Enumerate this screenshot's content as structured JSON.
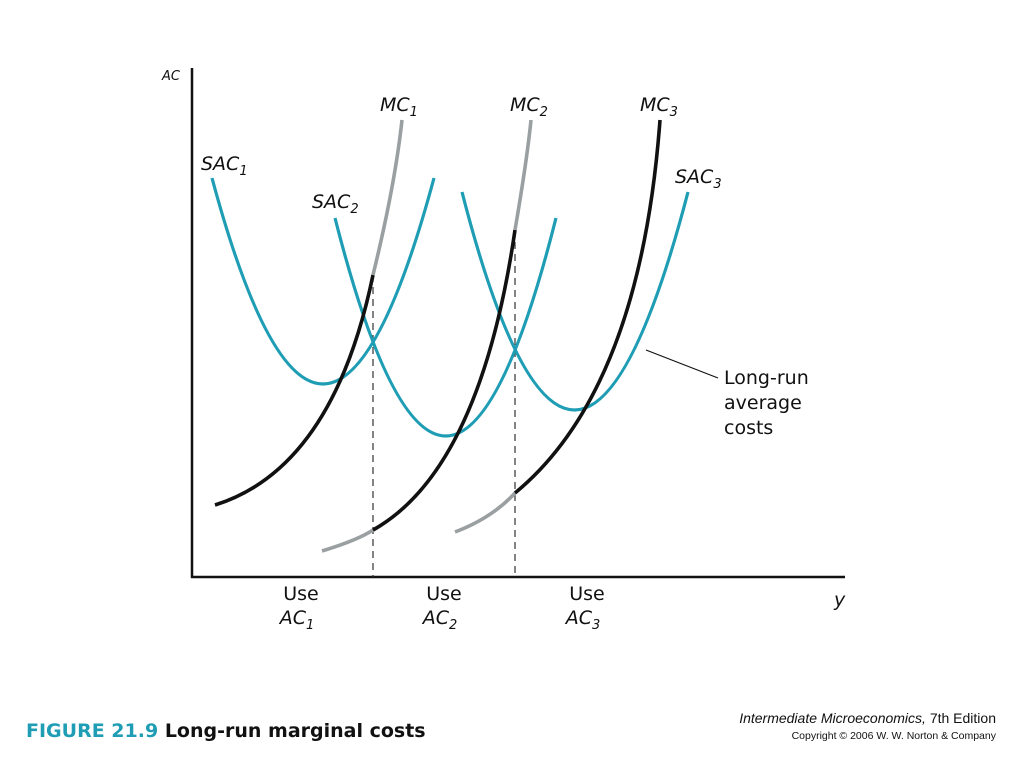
{
  "axes": {
    "y_label": "AC",
    "x_label": "y"
  },
  "curves": {
    "mc1": "MC1",
    "mc2": "MC2",
    "mc3": "MC3",
    "sac1": "SAC1",
    "sac2": "SAC2",
    "sac3": "SAC3"
  },
  "regions": [
    {
      "use": "Use",
      "ac": "AC1"
    },
    {
      "use": "Use",
      "ac": "AC2"
    },
    {
      "use": "Use",
      "ac": "AC3"
    }
  ],
  "annotation": {
    "line1": "Long-run",
    "line2": "average",
    "line3": "costs"
  },
  "caption": {
    "number": "FIGURE 21.9",
    "title": "Long-run marginal costs"
  },
  "book": {
    "title": "Intermediate Microeconomics,",
    "edition": " 7th Edition",
    "copyright": "Copyright © 2006 W. W. Norton & Company"
  },
  "colors": {
    "sac": "#1e9db5",
    "mc_active": "#111111",
    "mc_inactive": "#9aa0a2",
    "axis": "#111111"
  }
}
